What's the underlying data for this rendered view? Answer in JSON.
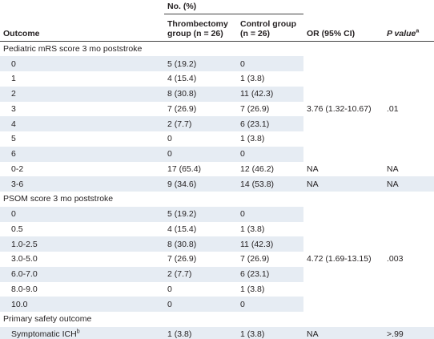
{
  "header": {
    "group_label": "No. (%)",
    "columns": [
      "Outcome",
      "Thrombectomy group (n = 26)",
      "Control group (n = 26)",
      "OR (95% CI)",
      "P value"
    ],
    "p_note": "a"
  },
  "sections": [
    {
      "title": "Pediatric mRS score 3 mo poststroke",
      "rows": [
        {
          "label": "0",
          "thrombectomy": "5 (19.2)",
          "control": "0"
        },
        {
          "label": "1",
          "thrombectomy": "4 (15.4)",
          "control": "1 (3.8)"
        },
        {
          "label": "2",
          "thrombectomy": "8 (30.8)",
          "control": "11 (42.3)"
        },
        {
          "label": "3",
          "thrombectomy": "7 (26.9)",
          "control": "7 (26.9)"
        },
        {
          "label": "4",
          "thrombectomy": "2 (7.7)",
          "control": "6 (23.1)"
        },
        {
          "label": "5",
          "thrombectomy": "0",
          "control": "1 (3.8)"
        },
        {
          "label": "6",
          "thrombectomy": "0",
          "control": "0"
        }
      ],
      "or": "3.76 (1.32-10.67)",
      "p": ".01",
      "summary_rows": [
        {
          "label": "0-2",
          "thrombectomy": "17 (65.4)",
          "control": "12 (46.2)",
          "or": "NA",
          "p": "NA"
        },
        {
          "label": "3-6",
          "thrombectomy": "9 (34.6)",
          "control": "14 (53.8)",
          "or": "NA",
          "p": "NA"
        }
      ]
    },
    {
      "title": "PSOM score 3 mo poststroke",
      "rows": [
        {
          "label": "0",
          "thrombectomy": "5 (19.2)",
          "control": "0"
        },
        {
          "label": "0.5",
          "thrombectomy": "4 (15.4)",
          "control": "1 (3.8)"
        },
        {
          "label": "1.0-2.5",
          "thrombectomy": "8 (30.8)",
          "control": "11 (42.3)"
        },
        {
          "label": "3.0-5.0",
          "thrombectomy": "7 (26.9)",
          "control": "7 (26.9)"
        },
        {
          "label": "6.0-7.0",
          "thrombectomy": "2 (7.7)",
          "control": "6 (23.1)"
        },
        {
          "label": "8.0-9.0",
          "thrombectomy": "0",
          "control": "1 (3.8)"
        },
        {
          "label": "10.0",
          "thrombectomy": "0",
          "control": "0"
        }
      ],
      "or": "4.72 (1.69-13.15)",
      "p": ".003"
    },
    {
      "title": "Primary safety outcome",
      "summary_rows": [
        {
          "label": "Symptomatic ICH",
          "note": "b",
          "thrombectomy": "1 (3.8)",
          "control": "1 (3.8)",
          "or": "NA",
          "p": ">.99"
        }
      ]
    }
  ]
}
